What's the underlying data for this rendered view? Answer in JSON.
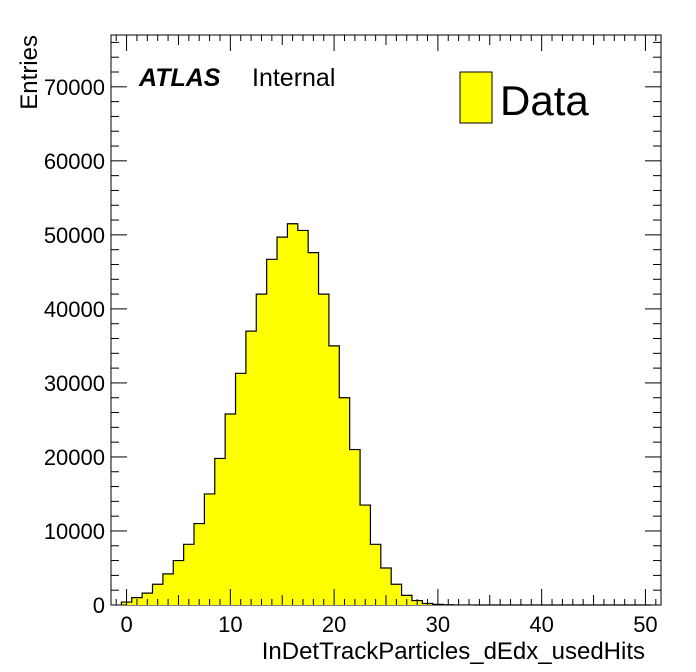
{
  "chart_data": {
    "type": "bar",
    "histogram": true,
    "title": "",
    "xlabel": "InDetTrackParticles_dEdx_usedHits",
    "ylabel": "Entries",
    "xlim": [
      -1.5,
      51.5
    ],
    "ylim": [
      0,
      77000
    ],
    "x_ticks": [
      0,
      10,
      20,
      30,
      40,
      50
    ],
    "y_ticks": [
      0,
      10000,
      20000,
      30000,
      40000,
      50000,
      60000,
      70000
    ],
    "bin_edges": [
      -0.5,
      0.5,
      1.5,
      2.5,
      3.5,
      4.5,
      5.5,
      6.5,
      7.5,
      8.5,
      9.5,
      10.5,
      11.5,
      12.5,
      13.5,
      14.5,
      15.5,
      16.5,
      17.5,
      18.5,
      19.5,
      20.5,
      21.5,
      22.5,
      23.5,
      24.5,
      25.5,
      26.5,
      27.5,
      28.5,
      29.5,
      30.5,
      31.5,
      32.5,
      33.5,
      34.5,
      35.5,
      36.5,
      37.5,
      38.5,
      39.5,
      40.5,
      41.5,
      42.5,
      43.5,
      44.5,
      45.5,
      46.5,
      47.5,
      48.5,
      49.5,
      50.5
    ],
    "series": [
      {
        "name": "Data",
        "color": "#ffff00",
        "edge_color": "#000000",
        "values": [
          400,
          1000,
          1600,
          2800,
          4200,
          6000,
          8200,
          11000,
          15000,
          19800,
          25800,
          31300,
          37000,
          42000,
          46700,
          49700,
          51500,
          50600,
          47600,
          42000,
          35000,
          28000,
          21000,
          13500,
          8200,
          5000,
          2800,
          1300,
          600,
          200,
          80,
          30,
          10,
          5,
          2,
          1,
          0,
          0,
          0,
          0,
          0,
          0,
          0,
          0,
          0,
          0,
          0,
          0,
          0,
          0,
          0
        ]
      }
    ],
    "legend": {
      "position": "top-right",
      "entries": [
        "Data"
      ]
    },
    "annotations": {
      "experiment": "ATLAS",
      "status": "Internal"
    },
    "grid": false
  }
}
